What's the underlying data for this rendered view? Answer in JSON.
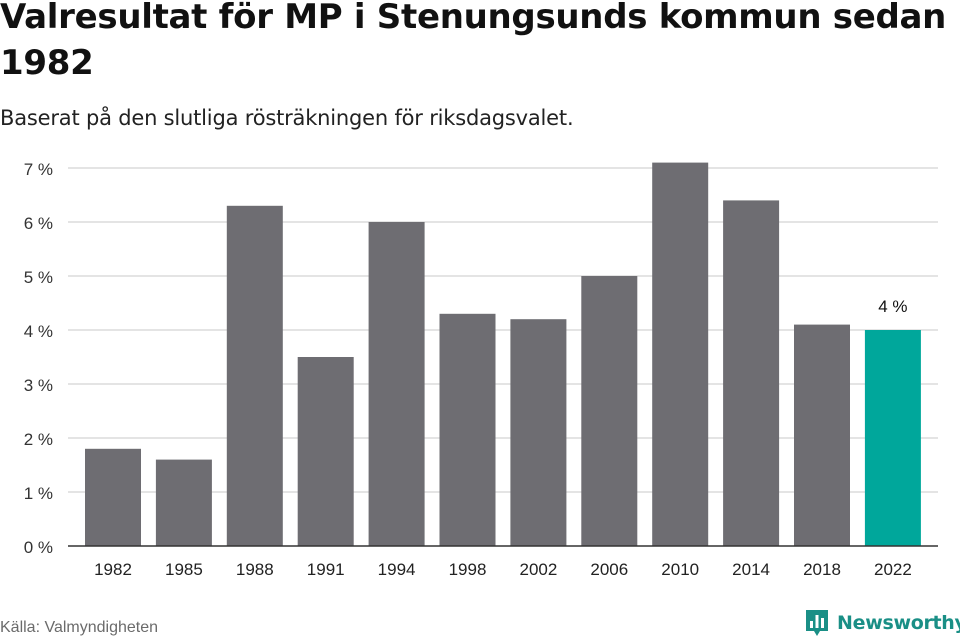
{
  "title": "Valresultat för MP i Stenungsunds kommun sedan 1982",
  "subtitle": "Baserat på den slutliga rösträkningen för riksdagsvalet.",
  "source": "Källa: Valmyndigheten",
  "brand": {
    "name": "Newsworthy",
    "logo_icon": "newsworthy-bar-chart-icon",
    "color": "#1a8f86"
  },
  "colors": {
    "bar": "#6e6d72",
    "highlight": "#00a79b",
    "grid": "#dcdcdc",
    "axis": "#333333"
  },
  "chart_data": {
    "type": "bar",
    "categories": [
      "1982",
      "1985",
      "1988",
      "1991",
      "1994",
      "1998",
      "2002",
      "2006",
      "2010",
      "2014",
      "2018",
      "2022"
    ],
    "values": [
      1.8,
      1.6,
      6.3,
      3.5,
      6.0,
      4.3,
      4.2,
      5.0,
      7.1,
      6.4,
      4.1,
      4.0
    ],
    "highlight_index": 11,
    "data_labels": [
      {
        "index": 11,
        "text": "4 %"
      }
    ],
    "yticks": [
      {
        "value": 0,
        "label": "0 %"
      },
      {
        "value": 1,
        "label": "1 %"
      },
      {
        "value": 2,
        "label": "2 %"
      },
      {
        "value": 3,
        "label": "3 %"
      },
      {
        "value": 4,
        "label": "4 %"
      },
      {
        "value": 5,
        "label": "5 %"
      },
      {
        "value": 6,
        "label": "6 %"
      },
      {
        "value": 7,
        "label": "7 %"
      }
    ],
    "ylim": [
      0,
      7.3
    ],
    "grid": true,
    "xlabel": "",
    "ylabel": ""
  }
}
